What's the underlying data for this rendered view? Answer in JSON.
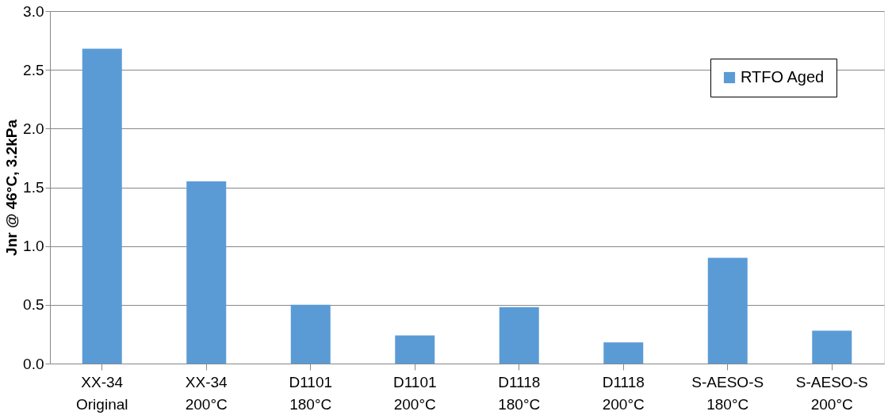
{
  "chart_data": {
    "type": "bar",
    "ylabel": "Jnr @ 46°C, 3.2kPa",
    "categories": [
      "XX-34 Original",
      "XX-34 200°C",
      "D1101 180°C",
      "D1101 200°C",
      "D1118 180°C",
      "D1118 200°C",
      "S-AESO-S 180°C",
      "S-AESO-S 200°C"
    ],
    "series": [
      {
        "name": "RTFO Aged",
        "color": "#5b9bd5",
        "values": [
          2.68,
          1.55,
          0.5,
          0.24,
          0.48,
          0.18,
          0.9,
          0.28
        ]
      }
    ],
    "ylim": [
      0,
      3
    ],
    "yticks": [
      {
        "value": 0,
        "label": "0.0"
      },
      {
        "value": 0.5,
        "label": "0.5"
      },
      {
        "value": 1,
        "label": "1.0"
      },
      {
        "value": 1.5,
        "label": "1.5"
      },
      {
        "value": 2,
        "label": "2.0"
      },
      {
        "value": 2.5,
        "label": "2.5"
      },
      {
        "value": 3,
        "label": "3.0"
      }
    ],
    "grid": "y",
    "legend": "top right"
  }
}
